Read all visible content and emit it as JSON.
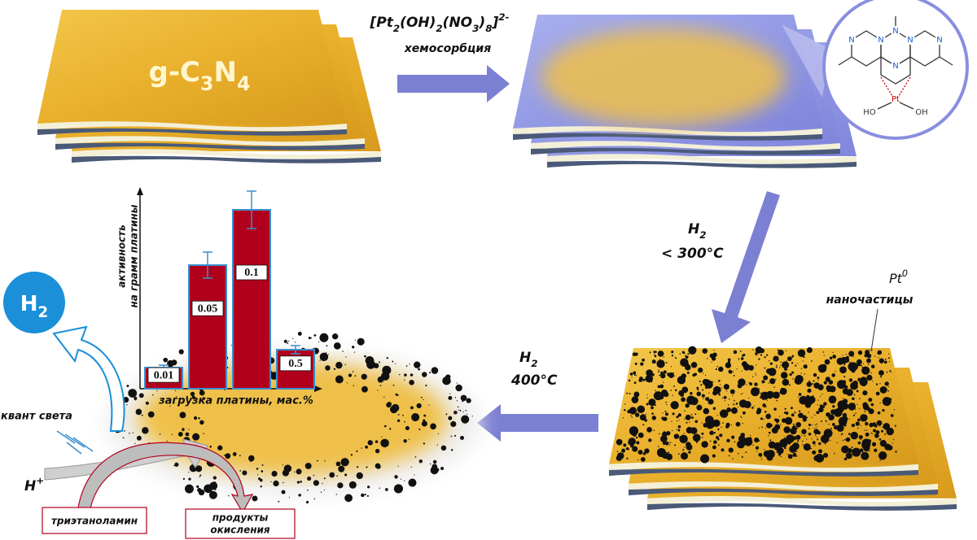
{
  "sheet_label": [
    {
      "t": "g-C"
    },
    {
      "t": "3",
      "pos": "sub"
    },
    {
      "t": "N"
    },
    {
      "t": "4",
      "pos": "sub"
    }
  ],
  "precursor": [
    {
      "t": "[Pt"
    },
    {
      "t": "2",
      "pos": "sub"
    },
    {
      "t": "(OH)"
    },
    {
      "t": "2",
      "pos": "sub"
    },
    {
      "t": "(NO"
    },
    {
      "t": "3",
      "pos": "sub"
    },
    {
      "t": ")"
    },
    {
      "t": "8",
      "pos": "sub"
    },
    {
      "t": "]"
    },
    {
      "t": "2-",
      "pos": "sup"
    }
  ],
  "step1": "хемосорбция",
  "step2": {
    "gas": [
      {
        "t": "H"
      },
      {
        "t": "2",
        "pos": "sub"
      }
    ],
    "condition": "< 300°C"
  },
  "step3": {
    "gas": [
      {
        "t": "H"
      },
      {
        "t": "2",
        "pos": "sub"
      }
    ],
    "condition": "400°C"
  },
  "particles": {
    "species": [
      {
        "t": "Pt"
      },
      {
        "t": "0",
        "pos": "sup"
      }
    ],
    "label": "наночастицы"
  },
  "molecule": {
    "atoms": [
      "N",
      "N",
      "N",
      "N",
      "N",
      "N",
      "Pt",
      "HO",
      "OH"
    ]
  },
  "product": [
    {
      "t": "H"
    },
    {
      "t": "2",
      "pos": "sub"
    }
  ],
  "light": "квант света",
  "proton": [
    {
      "t": "H"
    },
    {
      "t": "+",
      "pos": "sup"
    }
  ],
  "donor": "триэтаноламин",
  "oxidized": [
    "продукты",
    "окисления"
  ],
  "chart_data": {
    "type": "bar",
    "ylabel": [
      "активность",
      "на грамм платины"
    ],
    "xlabel": "загрузка платины, мас.%",
    "categories": [
      "0.01",
      "0.05",
      "0.1",
      "0.5"
    ],
    "values": [
      26,
      152,
      220,
      48
    ],
    "errors": [
      3,
      16,
      23,
      5
    ],
    "ylim": [
      0,
      246
    ],
    "color": "#b0001c",
    "edge_color": "#3a8fd0"
  }
}
